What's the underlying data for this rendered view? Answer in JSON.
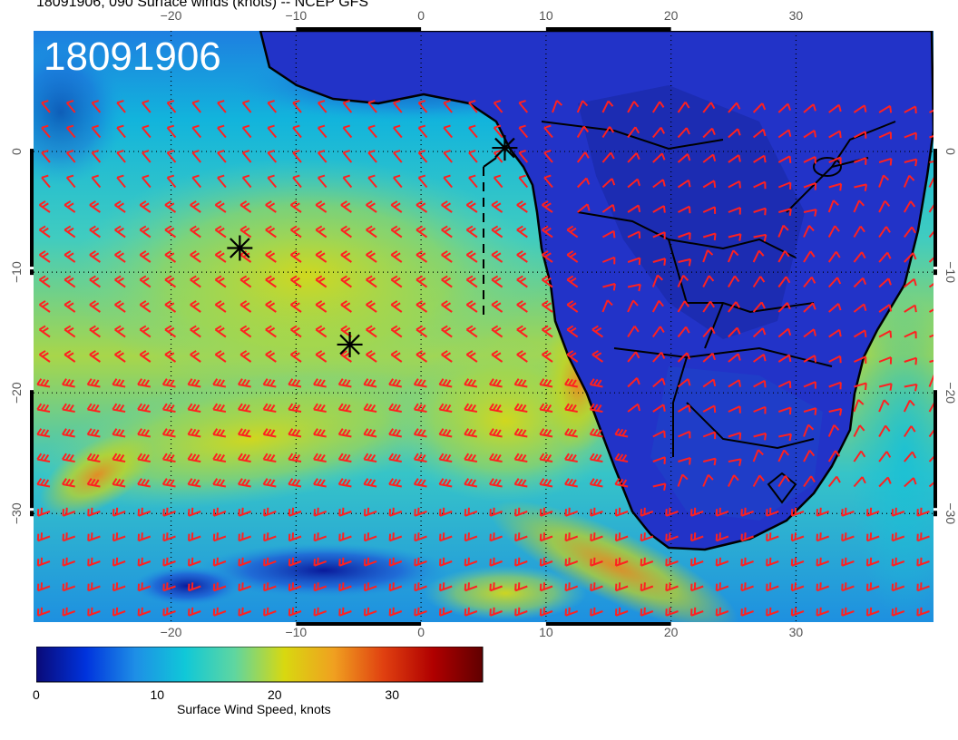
{
  "title": "18091906, 090 Surface winds (knots) -- NCEP GFS",
  "stamp": "18091906",
  "colorbar": {
    "label": "Surface Wind Speed, knots",
    "ticks": [
      "0",
      "10",
      "20",
      "30"
    ],
    "range": [
      0,
      38
    ],
    "colors": [
      "#0a0a78",
      "#0033dd",
      "#1e8fe6",
      "#10c8d8",
      "#5fd6a0",
      "#d8d810",
      "#f0a020",
      "#e04010",
      "#b00000",
      "#600000"
    ]
  },
  "axes": {
    "lon_labels": [
      "−20",
      "−10",
      "0",
      "10",
      "20",
      "30"
    ],
    "lat_labels": [
      "0",
      "−10",
      "−20",
      "−30"
    ],
    "lon_range": [
      -31,
      41
    ],
    "lat_range": [
      -39,
      10
    ]
  },
  "markers": [
    {
      "name": "storm-marker-1",
      "lon": -14.5,
      "lat": -8
    },
    {
      "name": "storm-marker-2",
      "lon": -5.7,
      "lat": -16
    },
    {
      "name": "storm-marker-3",
      "lon": 6.7,
      "lat": 0.3
    }
  ],
  "colors": {
    "barb": "#ff2020",
    "land_outline": "#000000",
    "grid": "#000000"
  }
}
